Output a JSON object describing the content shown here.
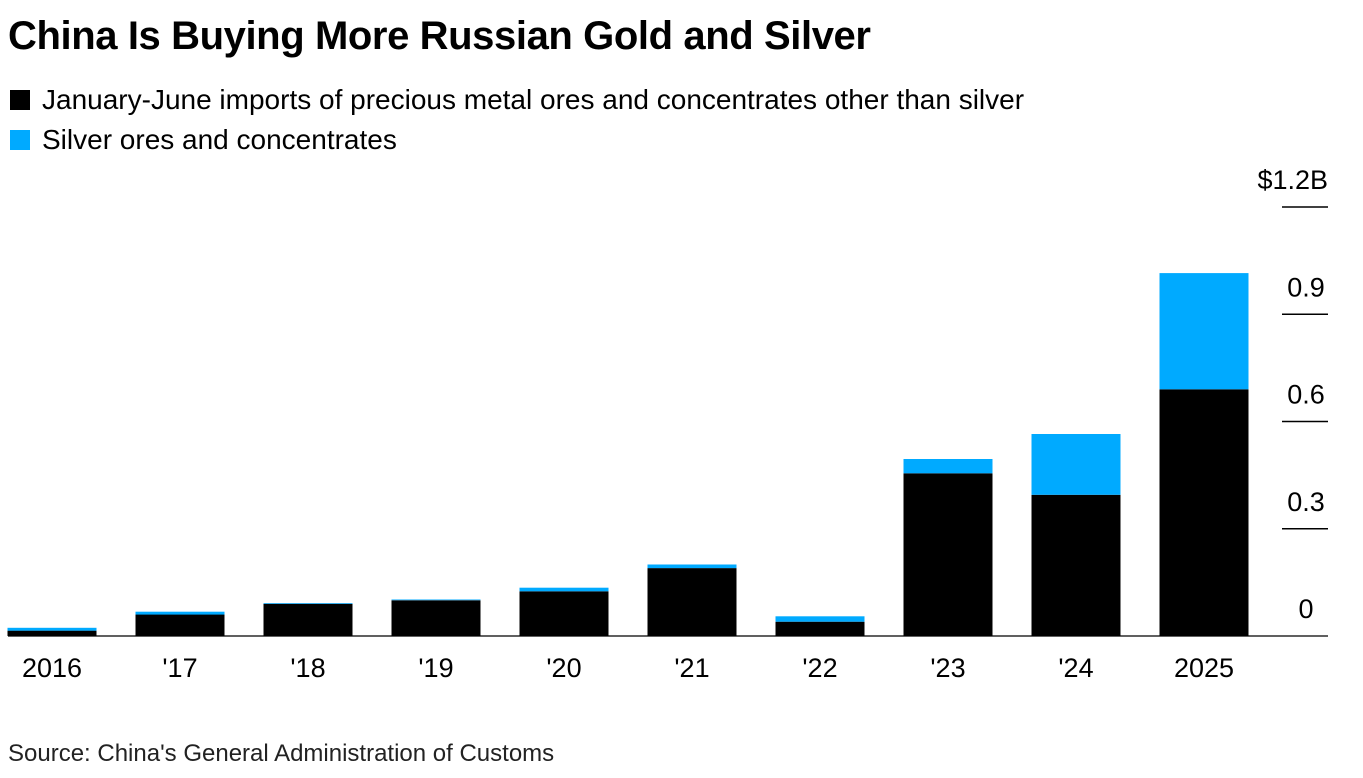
{
  "chart_data": {
    "type": "bar",
    "stacked": true,
    "title": "China Is Buying More Russian Gold and Silver",
    "categories": [
      "2016",
      "'17",
      "'18",
      "'19",
      "'20",
      "'21",
      "'22",
      "'23",
      "'24",
      "2025"
    ],
    "series": [
      {
        "name": "January-June imports of precious metal ores and concentrates other than silver",
        "color": "#000000",
        "values": [
          0.015,
          0.06,
          0.09,
          0.1,
          0.125,
          0.19,
          0.04,
          0.455,
          0.395,
          0.69
        ]
      },
      {
        "name": "Silver ores and concentrates",
        "color": "#00aaff",
        "values": [
          0.008,
          0.008,
          0.002,
          0.002,
          0.01,
          0.01,
          0.015,
          0.04,
          0.17,
          0.325
        ]
      }
    ],
    "y_ticks": [
      {
        "value": 0,
        "label": "0"
      },
      {
        "value": 0.3,
        "label": "0.3"
      },
      {
        "value": 0.6,
        "label": "0.6"
      },
      {
        "value": 0.9,
        "label": "0.9"
      },
      {
        "value": 1.2,
        "label": "$1.2B"
      }
    ],
    "ylim": [
      0,
      1.2
    ],
    "axis_position": "right",
    "grid": false,
    "legend_position": "top-left",
    "source": "Source: China's General Administration of Customs"
  }
}
